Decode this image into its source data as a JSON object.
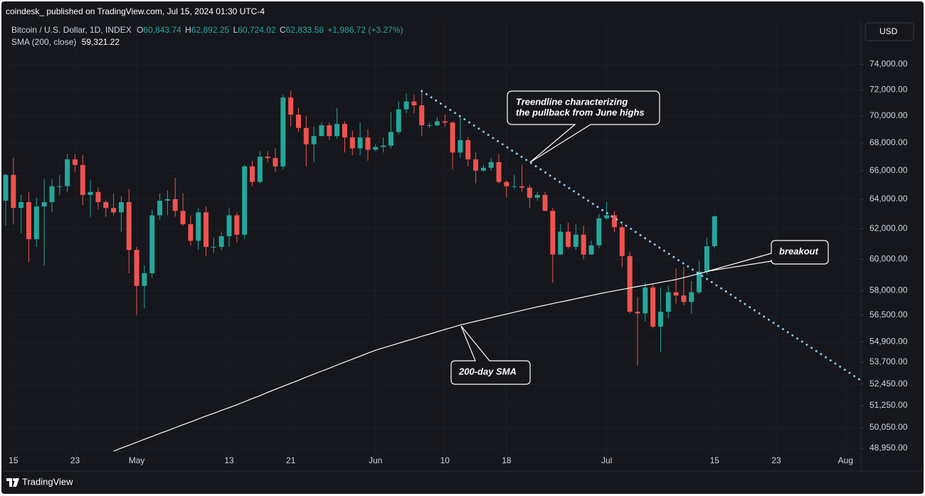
{
  "publisher": "coindesk_ published on TradingView.com, Jul 15, 2024 01:30 UTC-4",
  "logo": "TradingView",
  "currency_button": "USD",
  "chart_data": {
    "type": "candlestick",
    "title": "Bitcoin / U.S. Dollar, 1D, INDEX",
    "ohlc_letters": [
      "O",
      "H",
      "L",
      "C"
    ],
    "ohlc_labels": [
      "60,843.74",
      "62,892.25",
      "60,724.02",
      "62,833.58"
    ],
    "change_label": "+1,986.72 (+3.27%)",
    "up_color": "#26a69a",
    "down_color": "#ef5350",
    "x": [
      "2024-04-14",
      "2024-04-15",
      "2024-04-16",
      "2024-04-17",
      "2024-04-18",
      "2024-04-19",
      "2024-04-20",
      "2024-04-21",
      "2024-04-22",
      "2024-04-23",
      "2024-04-24",
      "2024-04-25",
      "2024-04-26",
      "2024-04-27",
      "2024-04-28",
      "2024-04-29",
      "2024-04-30",
      "2024-05-01",
      "2024-05-02",
      "2024-05-03",
      "2024-05-04",
      "2024-05-05",
      "2024-05-06",
      "2024-05-07",
      "2024-05-08",
      "2024-05-09",
      "2024-05-10",
      "2024-05-11",
      "2024-05-12",
      "2024-05-13",
      "2024-05-14",
      "2024-05-15",
      "2024-05-16",
      "2024-05-17",
      "2024-05-18",
      "2024-05-19",
      "2024-05-20",
      "2024-05-21",
      "2024-05-22",
      "2024-05-23",
      "2024-05-24",
      "2024-05-25",
      "2024-05-26",
      "2024-05-27",
      "2024-05-28",
      "2024-05-29",
      "2024-05-30",
      "2024-05-31",
      "2024-06-01",
      "2024-06-02",
      "2024-06-03",
      "2024-06-04",
      "2024-06-05",
      "2024-06-06",
      "2024-06-07",
      "2024-06-08",
      "2024-06-09",
      "2024-06-10",
      "2024-06-11",
      "2024-06-12",
      "2024-06-13",
      "2024-06-14",
      "2024-06-15",
      "2024-06-16",
      "2024-06-17",
      "2024-06-18",
      "2024-06-19",
      "2024-06-20",
      "2024-06-21",
      "2024-06-22",
      "2024-06-23",
      "2024-06-24",
      "2024-06-25",
      "2024-06-26",
      "2024-06-27",
      "2024-06-28",
      "2024-06-29",
      "2024-06-30",
      "2024-07-01",
      "2024-07-02",
      "2024-07-03",
      "2024-07-04",
      "2024-07-05",
      "2024-07-06",
      "2024-07-07",
      "2024-07-08",
      "2024-07-09",
      "2024-07-10",
      "2024-07-11",
      "2024-07-12",
      "2024-07-13",
      "2024-07-14",
      "2024-07-15"
    ],
    "open": [
      63900,
      65700,
      63400,
      63800,
      61300,
      63500,
      63800,
      64900,
      64900,
      66800,
      66400,
      64300,
      64500,
      63800,
      63400,
      63100,
      63800,
      60600,
      58300,
      59100,
      62900,
      63900,
      64000,
      63200,
      62300,
      61200,
      63100,
      60800,
      60800,
      61500,
      62900,
      61600,
      66300,
      65200,
      67000,
      66900,
      66300,
      71400,
      70100,
      69100,
      67900,
      68500,
      69300,
      68500,
      69400,
      68400,
      67600,
      68400,
      67500,
      67700,
      67800,
      68800,
      70500,
      71100,
      70800,
      69300,
      69300,
      69600,
      69500,
      67300,
      68200,
      66800,
      66000,
      66200,
      66600,
      65200,
      64900,
      64900,
      64800,
      64100,
      64300,
      63200,
      60300,
      61800,
      60800,
      61600,
      60300,
      60900,
      62700,
      62900,
      62100,
      60200,
      56700,
      56600,
      58200,
      55800,
      56700,
      57900,
      57700,
      57300,
      57900,
      59200,
      60843.74
    ],
    "high": [
      65800,
      66900,
      64300,
      64500,
      64100,
      65400,
      65400,
      65700,
      67200,
      67200,
      67100,
      65300,
      64800,
      63900,
      64400,
      64200,
      64700,
      60800,
      59600,
      63300,
      64400,
      64600,
      65500,
      64400,
      62900,
      63400,
      63500,
      61400,
      61800,
      63400,
      63100,
      66400,
      66700,
      67400,
      67400,
      67600,
      71600,
      71900,
      70600,
      70000,
      69200,
      69500,
      69500,
      70600,
      69600,
      68900,
      69500,
      69000,
      67900,
      68400,
      70300,
      71100,
      71700,
      71600,
      71900,
      69500,
      69900,
      70100,
      69600,
      69900,
      68400,
      67300,
      66400,
      66900,
      67200,
      65300,
      65700,
      66400,
      65000,
      64500,
      64500,
      63400,
      62300,
      62400,
      62300,
      62200,
      61200,
      63000,
      63800,
      63200,
      62300,
      60500,
      57600,
      58500,
      58400,
      58200,
      58300,
      59400,
      59500,
      58600,
      59900,
      61400,
      62892.25
    ],
    "low": [
      62200,
      62300,
      61700,
      59800,
      60800,
      59600,
      63100,
      64300,
      64500,
      65900,
      63600,
      62800,
      63300,
      62800,
      62900,
      61800,
      59100,
      56500,
      56900,
      58800,
      62600,
      62900,
      62800,
      62200,
      60900,
      60600,
      60200,
      60400,
      60600,
      60800,
      61100,
      61300,
      64900,
      65100,
      66600,
      65900,
      66100,
      69200,
      68800,
      66300,
      66600,
      68500,
      68200,
      68300,
      67300,
      67100,
      67100,
      66700,
      67400,
      67300,
      67600,
      68600,
      70200,
      70200,
      68500,
      69100,
      69200,
      69200,
      66100,
      66900,
      66300,
      65100,
      65900,
      66000,
      65100,
      64100,
      64700,
      64500,
      63400,
      63900,
      63200,
      58500,
      60300,
      60700,
      60600,
      60000,
      60300,
      60700,
      62600,
      61800,
      59500,
      56600,
      53500,
      56100,
      55700,
      54300,
      56300,
      57200,
      57100,
      56600,
      57800,
      59000,
      60724.02
    ],
    "close": [
      65700,
      63400,
      63800,
      61300,
      63500,
      63800,
      64900,
      64900,
      66800,
      66400,
      64300,
      64500,
      63800,
      63400,
      63100,
      63800,
      60600,
      58300,
      59100,
      62900,
      63900,
      64000,
      63200,
      62300,
      61200,
      63100,
      60800,
      60800,
      61500,
      62900,
      61600,
      66300,
      65200,
      67000,
      66900,
      66300,
      71400,
      70100,
      69100,
      67900,
      68500,
      69300,
      68500,
      69400,
      68400,
      67600,
      68400,
      67500,
      67700,
      67800,
      68800,
      70500,
      71100,
      70800,
      69300,
      69300,
      69600,
      69500,
      67300,
      68200,
      66800,
      66000,
      66200,
      66600,
      65200,
      64900,
      64900,
      64800,
      64100,
      64300,
      63200,
      60300,
      61800,
      60800,
      61600,
      60300,
      60900,
      62700,
      62900,
      62100,
      60200,
      56700,
      56600,
      58200,
      55800,
      56700,
      57900,
      57700,
      57300,
      57900,
      59200,
      60840,
      62833.58
    ],
    "sma": {
      "name": "SMA (200, close)",
      "last_value_label": "59,321.22",
      "color": "#ffffff",
      "values": [
        null,
        null,
        null,
        null,
        null,
        null,
        null,
        null,
        null,
        null,
        null,
        null,
        null,
        null,
        48800,
        48960,
        49110,
        49270,
        49430,
        49580,
        49740,
        49890,
        50050,
        50210,
        50360,
        50520,
        50680,
        50830,
        50990,
        51140,
        51300,
        51470,
        51640,
        51810,
        51990,
        52160,
        52330,
        52500,
        52670,
        52850,
        53020,
        53190,
        53360,
        53540,
        53710,
        53880,
        54050,
        54230,
        54400,
        54540,
        54670,
        54810,
        54950,
        55080,
        55220,
        55350,
        55490,
        55630,
        55760,
        55900,
        56010,
        56120,
        56230,
        56340,
        56450,
        56560,
        56670,
        56780,
        56890,
        57000,
        57100,
        57200,
        57300,
        57400,
        57500,
        57600,
        57700,
        57800,
        57900,
        57990,
        58080,
        58170,
        58260,
        58340,
        58430,
        58520,
        58610,
        58700,
        58820,
        58950,
        59070,
        59200,
        59321.22
      ]
    },
    "trendline": {
      "x": [
        "2024-06-07",
        "2024-08-03"
      ],
      "y": [
        71900,
        52660
      ],
      "color": "#8cc8f0"
    },
    "annotations": [
      {
        "text": [
          "Treendline characterizing",
          "the pullback from June highs"
        ]
      },
      {
        "text": "breakout"
      },
      {
        "text": "200-day SMA"
      }
    ],
    "xlim": [
      "2024-04-14",
      "2024-08-03"
    ],
    "xticks": [
      {
        "value": "2024-04-15",
        "label": "15"
      },
      {
        "value": "2024-04-23",
        "label": "23"
      },
      {
        "value": "2024-05-01",
        "label": "May"
      },
      {
        "value": "2024-05-13",
        "label": "13"
      },
      {
        "value": "2024-05-21",
        "label": "21"
      },
      {
        "value": "2024-06-01",
        "label": "Jun"
      },
      {
        "value": "2024-06-10",
        "label": "10"
      },
      {
        "value": "2024-06-18",
        "label": "18"
      },
      {
        "value": "2024-07-01",
        "label": "Jul"
      },
      {
        "value": "2024-07-15",
        "label": "15"
      },
      {
        "value": "2024-07-23",
        "label": "23"
      },
      {
        "value": "2024-08-01",
        "label": "Aug"
      }
    ],
    "ylim": [
      48280,
      77500
    ],
    "log_scale": true,
    "yticks": [
      {
        "value": 74000,
        "label": "74,000.00"
      },
      {
        "value": 72000,
        "label": "72,000.00"
      },
      {
        "value": 70000,
        "label": "70,000.00"
      },
      {
        "value": 68000,
        "label": "68,000.00"
      },
      {
        "value": 66000,
        "label": "66,000.00"
      },
      {
        "value": 64000,
        "label": "64,000.00"
      },
      {
        "value": 62000,
        "label": "62,000.00"
      },
      {
        "value": 60000,
        "label": "60,000.00"
      },
      {
        "value": 58000,
        "label": "58,000.00"
      },
      {
        "value": 56500,
        "label": "56,500.00"
      },
      {
        "value": 54900,
        "label": "54,900.00"
      },
      {
        "value": 53700,
        "label": "53,700.00"
      },
      {
        "value": 52450,
        "label": "52,450.00"
      },
      {
        "value": 51250,
        "label": "51,250.00"
      },
      {
        "value": 50050,
        "label": "50,050.00"
      },
      {
        "value": 48950,
        "label": "48,950.00"
      }
    ],
    "grid": true
  }
}
